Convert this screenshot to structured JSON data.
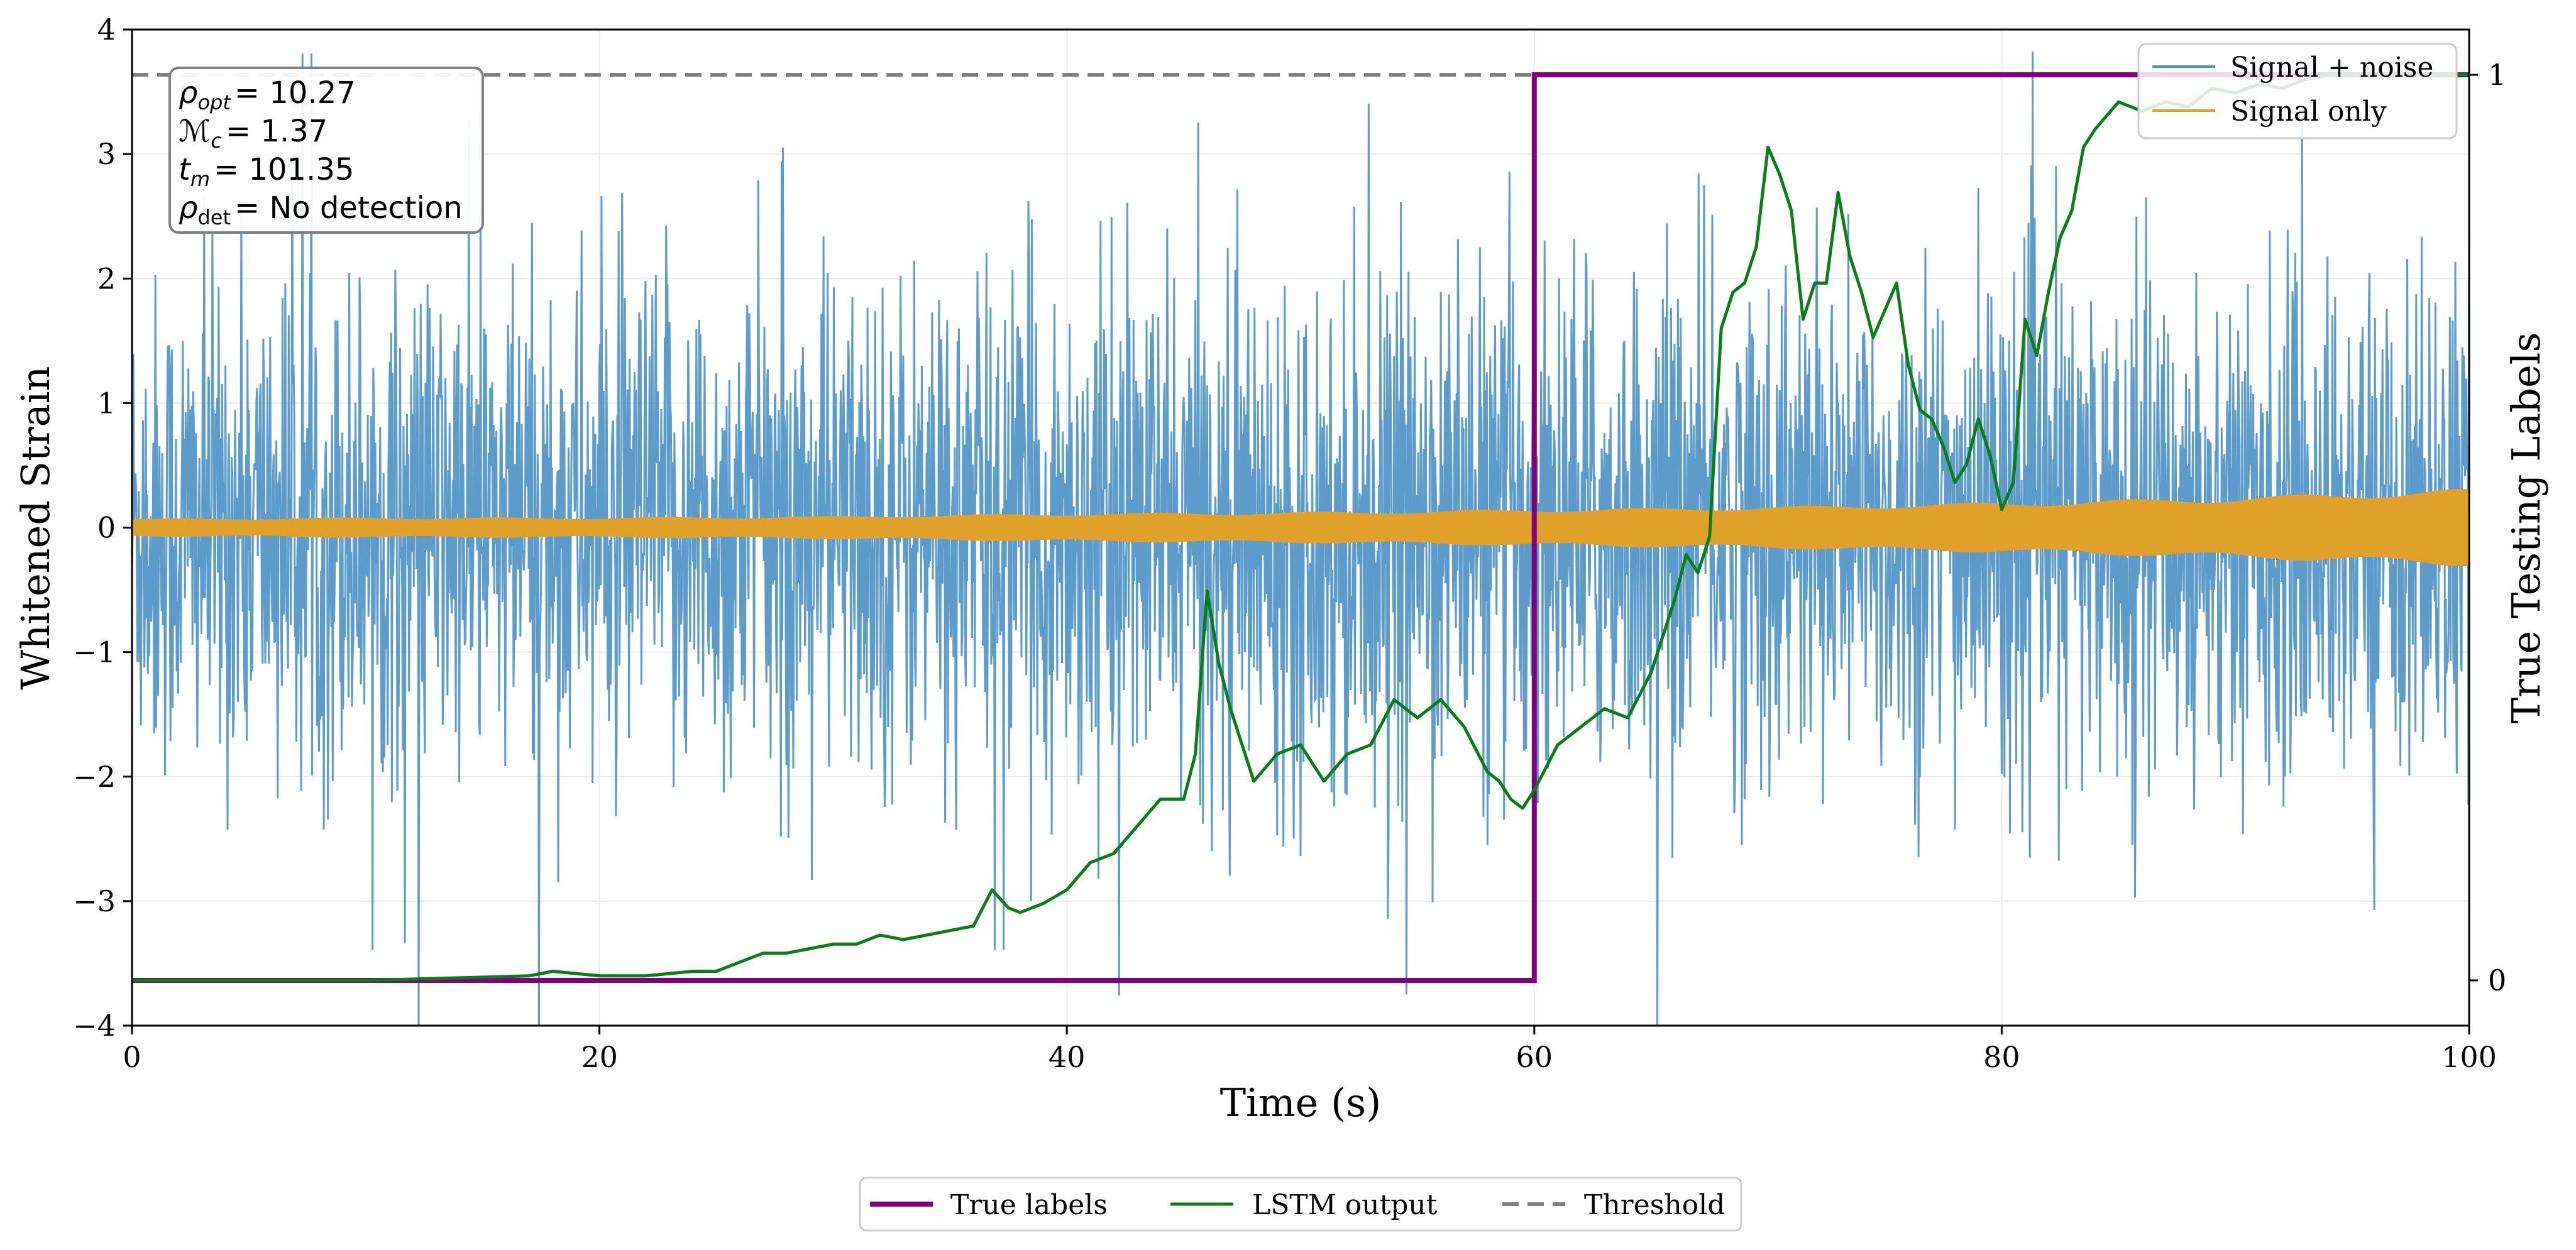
{
  "chart_data": {
    "type": "line",
    "xlabel": "Time (s)",
    "ylabel": "Whitened Strain",
    "y2label": "True Testing Labels",
    "xlim": [
      0,
      100
    ],
    "ylim": [
      -4,
      4
    ],
    "y2lim": [
      -0.05,
      1.05
    ],
    "x_ticks": [
      "0",
      "20",
      "40",
      "60",
      "80",
      "100"
    ],
    "y_ticks": [
      "−4",
      "−3",
      "−2",
      "−1",
      "0",
      "1",
      "2",
      "3",
      "4"
    ],
    "y2_ticks": [
      "0",
      "1"
    ],
    "grid": true,
    "info_box": {
      "rho_opt": {
        "symbol": "ρ",
        "sub": "opt",
        "value": "= 10.27"
      },
      "mc": {
        "symbol": "ℳ",
        "sub": "c",
        "value": "= 1.37"
      },
      "tm": {
        "symbol": "t",
        "sub": "m",
        "value": "= 101.35"
      },
      "rho_det": {
        "symbol": "ρ",
        "sub": "det",
        "value": "= No detection"
      }
    },
    "legend_upper": [
      {
        "label": "Signal + noise",
        "color": "#4a90c4"
      },
      {
        "label": "Signal only",
        "color": "#e0a12a"
      }
    ],
    "legend_bottom": [
      {
        "label": "True labels",
        "color": "#800080",
        "style": "solid"
      },
      {
        "label": "LSTM output",
        "color": "#0a7d16",
        "style": "solid"
      },
      {
        "label": "Threshold",
        "color": "#808080",
        "style": "dashed"
      }
    ],
    "threshold": {
      "y2": 1.0,
      "color": "#808080"
    },
    "signal_noise": {
      "name": "Signal + noise",
      "color": "#4a90c4",
      "typical_amplitude": 2.0,
      "peak_amplitude": 4.0
    },
    "signal_only": {
      "name": "Signal only",
      "color": "#e0a12a",
      "envelope_t": [
        0,
        10,
        20,
        30,
        40,
        50,
        60,
        70,
        80,
        90,
        100
      ],
      "envelope": [
        0.06,
        0.07,
        0.07,
        0.08,
        0.1,
        0.11,
        0.13,
        0.15,
        0.18,
        0.22,
        0.28
      ]
    },
    "true_labels": {
      "name": "True labels",
      "color": "#800080",
      "x": [
        0,
        60,
        60,
        100
      ],
      "y": [
        0,
        0,
        1,
        1
      ]
    },
    "lstm_output": {
      "name": "LSTM output",
      "color": "#0a7d16",
      "x": [
        0,
        10,
        17,
        18,
        20,
        22,
        24,
        25,
        26,
        27,
        28,
        29,
        30,
        31,
        32,
        33,
        34,
        35,
        36,
        36.8,
        37.5,
        38,
        39,
        40,
        41,
        42,
        43,
        44,
        45,
        45.5,
        46,
        46.5,
        47,
        48,
        49,
        50,
        51,
        52,
        53,
        54,
        55,
        56,
        57,
        58,
        58.5,
        59,
        59.5,
        60,
        61,
        62,
        63,
        64,
        65,
        66,
        66.5,
        67,
        67.5,
        68,
        68.5,
        69,
        69.5,
        70,
        70.5,
        71,
        71.5,
        72,
        72.5,
        73,
        73.5,
        74,
        74.5,
        75,
        75.5,
        76,
        76.5,
        77,
        77.5,
        78,
        78.5,
        79,
        79.5,
        80,
        80.5,
        81,
        81.5,
        82,
        82.5,
        83,
        83.5,
        84,
        85,
        86,
        87,
        88,
        89,
        90,
        91,
        92,
        93,
        94,
        95,
        96,
        97,
        98,
        99,
        100
      ],
      "y": [
        0,
        0,
        0.005,
        0.01,
        0.005,
        0.005,
        0.01,
        0.01,
        0.02,
        0.03,
        0.03,
        0.035,
        0.04,
        0.04,
        0.05,
        0.045,
        0.05,
        0.055,
        0.06,
        0.1,
        0.08,
        0.075,
        0.085,
        0.1,
        0.13,
        0.14,
        0.17,
        0.2,
        0.2,
        0.25,
        0.43,
        0.35,
        0.3,
        0.22,
        0.25,
        0.26,
        0.22,
        0.25,
        0.26,
        0.31,
        0.29,
        0.31,
        0.28,
        0.23,
        0.22,
        0.2,
        0.19,
        0.21,
        0.26,
        0.28,
        0.3,
        0.29,
        0.34,
        0.42,
        0.47,
        0.45,
        0.49,
        0.72,
        0.76,
        0.77,
        0.81,
        0.92,
        0.89,
        0.85,
        0.73,
        0.77,
        0.77,
        0.87,
        0.8,
        0.76,
        0.71,
        0.74,
        0.77,
        0.68,
        0.63,
        0.62,
        0.59,
        0.55,
        0.57,
        0.62,
        0.58,
        0.52,
        0.55,
        0.73,
        0.69,
        0.76,
        0.82,
        0.85,
        0.92,
        0.94,
        0.97,
        0.96,
        0.97,
        0.965,
        0.985,
        0.98,
        0.99,
        0.985,
        0.995,
        1.0,
        1.0,
        1.0,
        1.0,
        1.0,
        1.0,
        1.0
      ]
    }
  }
}
